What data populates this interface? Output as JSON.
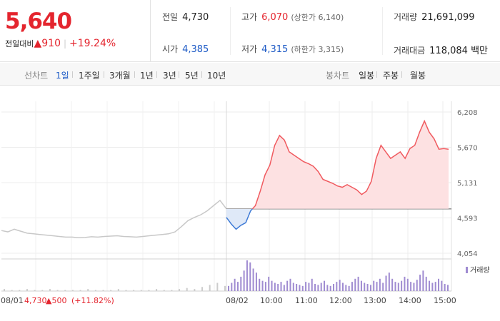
{
  "quote": {
    "price": "5,640",
    "change_label": "전일대비",
    "change_symbol": "▲",
    "change_value": "910",
    "change_pct": "+19.24%",
    "prev_close_label": "전일",
    "prev_close": "4,730",
    "open_label": "시가",
    "open": "4,385",
    "high_label": "고가",
    "high": "6,070",
    "high_limit": "(상한가 6,140)",
    "low_label": "저가",
    "low": "4,315",
    "low_limit": "(하한가 3,315)",
    "volume_label": "거래량",
    "volume": "21,691,099",
    "amount_label": "거래대금",
    "amount": "118,084 백만"
  },
  "toolbar": {
    "line_label": "선차트",
    "line_options": [
      "1일",
      "1주일",
      "3개월",
      "1년",
      "3년",
      "5년",
      "10년"
    ],
    "line_active": "1일",
    "candle_label": "봉차트",
    "candle_options": [
      "일봉",
      "주봉",
      "월봉"
    ]
  },
  "chart_data": {
    "type": "line",
    "y_ticks": [
      "6,208",
      "5,670",
      "5,131",
      "4,593",
      "4,054"
    ],
    "ylim": [
      4054,
      6208
    ],
    "baseline": 4730,
    "x_ticks": [
      "08/01",
      "08/02",
      "10:00",
      "11:00",
      "12:00",
      "13:00",
      "14:00",
      "15:00"
    ],
    "grid": true,
    "legend": "거래량",
    "prev_day_note": {
      "date": "08/01",
      "close": "4,730",
      "change": "▲500",
      "pct": "(+11.82%)"
    },
    "colors": {
      "up": "#f05a5f",
      "down": "#3d7ad6",
      "prev": "#c8c8c8",
      "volume": "#9f8bd1",
      "prev_volume": "#cccccc"
    },
    "prev_day_series": [
      4400,
      4380,
      4420,
      4390,
      4360,
      4350,
      4340,
      4330,
      4320,
      4310,
      4300,
      4300,
      4290,
      4295,
      4305,
      4300,
      4310,
      4315,
      4320,
      4310,
      4305,
      4300,
      4310,
      4320,
      4330,
      4340,
      4350,
      4380,
      4460,
      4550,
      4600,
      4640,
      4700,
      4780,
      4860,
      4730
    ],
    "today_series": [
      {
        "t": "09:00",
        "v": 4600
      },
      {
        "t": "09:05",
        "v": 4500
      },
      {
        "t": "09:10",
        "v": 4420
      },
      {
        "t": "09:15",
        "v": 4480
      },
      {
        "t": "09:20",
        "v": 4520
      },
      {
        "t": "09:25",
        "v": 4700
      },
      {
        "t": "09:30",
        "v": 4780
      },
      {
        "t": "09:35",
        "v": 5000
      },
      {
        "t": "09:40",
        "v": 5250
      },
      {
        "t": "09:45",
        "v": 5400
      },
      {
        "t": "09:50",
        "v": 5700
      },
      {
        "t": "09:55",
        "v": 5850
      },
      {
        "t": "10:00",
        "v": 5780
      },
      {
        "t": "10:10",
        "v": 5600
      },
      {
        "t": "10:20",
        "v": 5550
      },
      {
        "t": "10:30",
        "v": 5500
      },
      {
        "t": "10:40",
        "v": 5450
      },
      {
        "t": "10:50",
        "v": 5420
      },
      {
        "t": "11:00",
        "v": 5380
      },
      {
        "t": "11:10",
        "v": 5300
      },
      {
        "t": "11:20",
        "v": 5180
      },
      {
        "t": "11:30",
        "v": 5150
      },
      {
        "t": "11:40",
        "v": 5120
      },
      {
        "t": "11:50",
        "v": 5080
      },
      {
        "t": "12:00",
        "v": 5060
      },
      {
        "t": "12:10",
        "v": 5100
      },
      {
        "t": "12:20",
        "v": 5060
      },
      {
        "t": "12:30",
        "v": 5020
      },
      {
        "t": "12:40",
        "v": 4950
      },
      {
        "t": "12:50",
        "v": 5000
      },
      {
        "t": "13:00",
        "v": 5150
      },
      {
        "t": "13:10",
        "v": 5500
      },
      {
        "t": "13:20",
        "v": 5700
      },
      {
        "t": "13:30",
        "v": 5600
      },
      {
        "t": "13:40",
        "v": 5500
      },
      {
        "t": "13:50",
        "v": 5550
      },
      {
        "t": "14:00",
        "v": 5600
      },
      {
        "t": "14:10",
        "v": 5500
      },
      {
        "t": "14:20",
        "v": 5650
      },
      {
        "t": "14:30",
        "v": 5700
      },
      {
        "t": "14:40",
        "v": 5900
      },
      {
        "t": "14:45",
        "v": 6070
      },
      {
        "t": "14:50",
        "v": 5900
      },
      {
        "t": "14:55",
        "v": 5800
      },
      {
        "t": "15:00",
        "v": 5640
      },
      {
        "t": "15:10",
        "v": 5650
      },
      {
        "t": "15:20",
        "v": 5640
      }
    ],
    "volume_prev": [
      2,
      1,
      1,
      2,
      1,
      1,
      2,
      1,
      1,
      1,
      1,
      2,
      1,
      1,
      1,
      2,
      1,
      1,
      1,
      1,
      2,
      1,
      1,
      2,
      3,
      2,
      4,
      6,
      8,
      5
    ],
    "volume_today": [
      5,
      8,
      12,
      9,
      14,
      20,
      30,
      28,
      22,
      18,
      12,
      10,
      9,
      14,
      10,
      8,
      7,
      9,
      6,
      10,
      12,
      8,
      7,
      6,
      5,
      9,
      8,
      12,
      7,
      6,
      8,
      10,
      6,
      5,
      7,
      9,
      11,
      8,
      6,
      5,
      9,
      12,
      14,
      10,
      8,
      7,
      6,
      10,
      9,
      12,
      8,
      15,
      18,
      12,
      9,
      8,
      10,
      14,
      12,
      9,
      8,
      11,
      16,
      20,
      14,
      10,
      8,
      9,
      12,
      10,
      7,
      6
    ]
  }
}
